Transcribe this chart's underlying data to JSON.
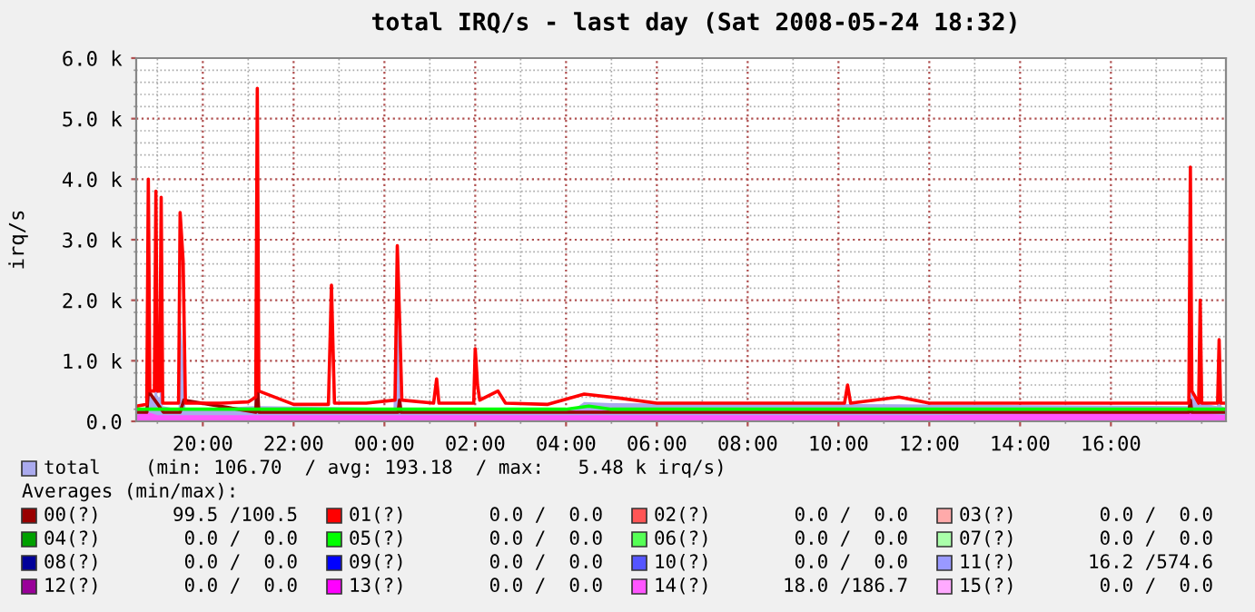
{
  "chart_data": {
    "type": "line",
    "title": "total IRQ/s - last day (Sat 2008-05-24 18:32)",
    "ylabel": "irq/s",
    "xlim": [
      "2008-05-23T18:32",
      "2008-05-24T18:32"
    ],
    "xticks": [
      {
        "value": "2008-05-23T19:00",
        "label": null
      },
      {
        "value": "2008-05-23T20:00",
        "label": "20:00"
      },
      {
        "value": "2008-05-23T21:00",
        "label": null
      },
      {
        "value": "2008-05-23T22:00",
        "label": "22:00"
      },
      {
        "value": "2008-05-23T23:00",
        "label": null
      },
      {
        "value": "2008-05-24T00:00",
        "label": "00:00"
      },
      {
        "value": "2008-05-24T01:00",
        "label": null
      },
      {
        "value": "2008-05-24T02:00",
        "label": "02:00"
      },
      {
        "value": "2008-05-24T03:00",
        "label": null
      },
      {
        "value": "2008-05-24T04:00",
        "label": "04:00"
      },
      {
        "value": "2008-05-24T05:00",
        "label": null
      },
      {
        "value": "2008-05-24T06:00",
        "label": "06:00"
      },
      {
        "value": "2008-05-24T07:00",
        "label": null
      },
      {
        "value": "2008-05-24T08:00",
        "label": "08:00"
      },
      {
        "value": "2008-05-24T09:00",
        "label": null
      },
      {
        "value": "2008-05-24T10:00",
        "label": "10:00"
      },
      {
        "value": "2008-05-24T11:00",
        "label": null
      },
      {
        "value": "2008-05-24T12:00",
        "label": "12:00"
      },
      {
        "value": "2008-05-24T13:00",
        "label": null
      },
      {
        "value": "2008-05-24T14:00",
        "label": "14:00"
      },
      {
        "value": "2008-05-24T15:00",
        "label": null
      },
      {
        "value": "2008-05-24T16:00",
        "label": "16:00"
      },
      {
        "value": "2008-05-24T17:00",
        "label": null
      },
      {
        "value": "2008-05-24T18:00",
        "label": null
      }
    ],
    "ylim": [
      0,
      6000
    ],
    "yticks": [
      {
        "value": 0,
        "label": "0.0"
      },
      {
        "value": 200,
        "label": null
      },
      {
        "value": 400,
        "label": null
      },
      {
        "value": 600,
        "label": null
      },
      {
        "value": 800,
        "label": null
      },
      {
        "value": 1000,
        "label": "1.0 k"
      },
      {
        "value": 1200,
        "label": null
      },
      {
        "value": 1400,
        "label": null
      },
      {
        "value": 1600,
        "label": null
      },
      {
        "value": 1800,
        "label": null
      },
      {
        "value": 2000,
        "label": "2.0 k"
      },
      {
        "value": 2200,
        "label": null
      },
      {
        "value": 2400,
        "label": null
      },
      {
        "value": 2600,
        "label": null
      },
      {
        "value": 2800,
        "label": null
      },
      {
        "value": 3000,
        "label": "3.0 k"
      },
      {
        "value": 3200,
        "label": null
      },
      {
        "value": 3400,
        "label": null
      },
      {
        "value": 3600,
        "label": null
      },
      {
        "value": 3800,
        "label": null
      },
      {
        "value": 4000,
        "label": "4.0 k"
      },
      {
        "value": 4200,
        "label": null
      },
      {
        "value": 4400,
        "label": null
      },
      {
        "value": 4600,
        "label": null
      },
      {
        "value": 4800,
        "label": null
      },
      {
        "value": 5000,
        "label": "5.0 k"
      },
      {
        "value": 5200,
        "label": null
      },
      {
        "value": 5400,
        "label": null
      },
      {
        "value": 5600,
        "label": null
      },
      {
        "value": 5800,
        "label": null
      },
      {
        "value": 6000,
        "label": "6.0 k"
      }
    ],
    "grid": true,
    "legend": "bottom",
    "annotations": [
      "(min: 106.70  / avg: 193.18  / max:   5.48 k irq/s)",
      "Averages (min/max):",
      "99.5 /100.5",
      "0.0 /  0.0",
      "0.0 /  0.0",
      "0.0 /  0.0",
      "0.0 /  0.0",
      "0.0 /  0.0",
      "0.0 /  0.0",
      "0.0 /  0.0",
      "0.0 /  0.0",
      "0.0 /  0.0",
      "0.0 /  0.0",
      "16.2 /574.6",
      "0.0 /  0.0",
      "0.0 /  0.0",
      "18.0 /186.7",
      "0.0 /  0.0"
    ],
    "series": [
      {
        "name": "total",
        "type": "area",
        "color": "#aaaaee",
        "x": [
          "2008-05-23T18:32",
          "2008-05-23T18:46",
          "2008-05-23T18:48",
          "2008-05-23T18:50",
          "2008-05-23T18:56",
          "2008-05-23T18:58",
          "2008-05-23T19:00",
          "2008-05-23T19:03",
          "2008-05-23T19:05",
          "2008-05-23T19:07",
          "2008-05-23T19:28",
          "2008-05-23T19:30",
          "2008-05-23T19:34",
          "2008-05-23T19:37",
          "2008-05-23T21:08",
          "2008-05-23T21:12",
          "2008-05-23T21:15",
          "2008-05-24T00:12",
          "2008-05-24T00:17",
          "2008-05-24T00:20",
          "2008-05-24T00:23",
          "2008-05-24T04:10",
          "2008-05-24T04:24",
          "2008-05-24T05:00",
          "2008-05-24T11:20",
          "2008-05-24T17:42",
          "2008-05-24T17:45",
          "2008-05-24T17:48",
          "2008-05-24T17:56",
          "2008-05-24T17:58",
          "2008-05-24T18:00",
          "2008-05-24T18:20",
          "2008-05-24T18:23",
          "2008-05-24T18:26",
          "2008-05-24T18:32"
        ],
        "values": [
          200,
          200,
          2150,
          400,
          400,
          2050,
          400,
          400,
          2000,
          250,
          200,
          1850,
          1050,
          200,
          250,
          2900,
          250,
          220,
          2150,
          700,
          220,
          200,
          320,
          300,
          280,
          250,
          2200,
          400,
          300,
          1100,
          300,
          250,
          800,
          250,
          220
        ]
      },
      {
        "name": "00(?)",
        "color": "#990000",
        "x": [
          "2008-05-23T18:32",
          "2008-05-23T18:46",
          "2008-05-23T18:48",
          "2008-05-23T19:08",
          "2008-05-23T19:30",
          "2008-05-23T19:35",
          "2008-05-23T21:10",
          "2008-05-23T21:12",
          "2008-05-23T21:14",
          "2008-05-24T00:18",
          "2008-05-24T00:20",
          "2008-05-24T00:22",
          "2008-05-24T17:43",
          "2008-05-24T17:45",
          "2008-05-24T17:47",
          "2008-05-24T18:32"
        ],
        "values": [
          150,
          150,
          500,
          150,
          150,
          350,
          150,
          700,
          150,
          150,
          350,
          150,
          150,
          350,
          150,
          150
        ]
      },
      {
        "name": "01(?)",
        "color": "#ff0000",
        "x": [
          "2008-05-23T18:32",
          "2008-05-23T18:46",
          "2008-05-23T18:48",
          "2008-05-23T18:50",
          "2008-05-23T18:56",
          "2008-05-23T18:58",
          "2008-05-23T19:00",
          "2008-05-23T19:03",
          "2008-05-23T19:05",
          "2008-05-23T19:07",
          "2008-05-23T19:28",
          "2008-05-23T19:30",
          "2008-05-23T19:34",
          "2008-05-23T19:37",
          "2008-05-23T20:24",
          "2008-05-23T21:00",
          "2008-05-23T21:10",
          "2008-05-23T21:12",
          "2008-05-23T21:14",
          "2008-05-23T22:00",
          "2008-05-23T22:46",
          "2008-05-23T22:48",
          "2008-05-23T22:50",
          "2008-05-23T22:52",
          "2008-05-23T22:54",
          "2008-05-23T23:36",
          "2008-05-24T00:14",
          "2008-05-24T00:17",
          "2008-05-24T00:20",
          "2008-05-24T00:23",
          "2008-05-24T01:05",
          "2008-05-24T01:09",
          "2008-05-24T01:12",
          "2008-05-24T01:58",
          "2008-05-24T02:00",
          "2008-05-24T02:03",
          "2008-05-24T02:06",
          "2008-05-24T02:30",
          "2008-05-24T02:40",
          "2008-05-24T03:36",
          "2008-05-24T04:24",
          "2008-05-24T05:12",
          "2008-05-24T06:00",
          "2008-05-24T07:36",
          "2008-05-24T09:12",
          "2008-05-24T10:08",
          "2008-05-24T10:12",
          "2008-05-24T10:16",
          "2008-05-24T11:20",
          "2008-05-24T12:00",
          "2008-05-24T13:12",
          "2008-05-24T14:48",
          "2008-05-24T16:24",
          "2008-05-24T17:36",
          "2008-05-24T17:43",
          "2008-05-24T17:45",
          "2008-05-24T17:47",
          "2008-05-24T17:56",
          "2008-05-24T17:58",
          "2008-05-24T18:00",
          "2008-05-24T18:21",
          "2008-05-24T18:23",
          "2008-05-24T18:25",
          "2008-05-24T18:32"
        ],
        "values": [
          250,
          280,
          4000,
          500,
          500,
          3800,
          500,
          500,
          3700,
          300,
          300,
          3450,
          2650,
          300,
          300,
          320,
          400,
          5500,
          500,
          280,
          280,
          1250,
          2250,
          1250,
          300,
          300,
          350,
          2900,
          1700,
          350,
          300,
          700,
          300,
          300,
          1200,
          600,
          350,
          500,
          300,
          280,
          450,
          380,
          300,
          300,
          300,
          300,
          600,
          300,
          400,
          300,
          300,
          300,
          300,
          300,
          300,
          4200,
          500,
          300,
          2000,
          300,
          300,
          1350,
          300,
          300
        ]
      },
      {
        "name": "02(?)",
        "color": "#ff5555"
      },
      {
        "name": "03(?)",
        "color": "#ffaaaa"
      },
      {
        "name": "04(?)",
        "color": "#00a000"
      },
      {
        "name": "05(?)",
        "color": "#00ff00",
        "x": [
          "2008-05-23T18:32",
          "2008-05-24T04:00",
          "2008-05-24T04:30",
          "2008-05-24T05:00",
          "2008-05-24T18:32"
        ],
        "values": [
          200,
          200,
          250,
          200,
          200
        ]
      },
      {
        "name": "06(?)",
        "color": "#55ff55"
      },
      {
        "name": "07(?)",
        "color": "#aaffaa"
      },
      {
        "name": "08(?)",
        "color": "#000099"
      },
      {
        "name": "09(?)",
        "color": "#0000ff"
      },
      {
        "name": "10(?)",
        "color": "#5555ff"
      },
      {
        "name": "11(?)",
        "color": "#9999ff"
      },
      {
        "name": "12(?)",
        "color": "#990099"
      },
      {
        "name": "13(?)",
        "color": "#ff00ff"
      },
      {
        "name": "14(?)",
        "type": "area",
        "color": "#ff55ff",
        "x": [
          "2008-05-23T18:32",
          "2008-05-23T18:48",
          "2008-05-23T19:00",
          "2008-05-24T00:00",
          "2008-05-24T06:00",
          "2008-05-24T12:00",
          "2008-05-24T17:45",
          "2008-05-24T18:32"
        ],
        "values": [
          100,
          150,
          100,
          100,
          100,
          100,
          150,
          100
        ]
      },
      {
        "name": "15(?)",
        "color": "#ffaaff"
      }
    ]
  }
}
